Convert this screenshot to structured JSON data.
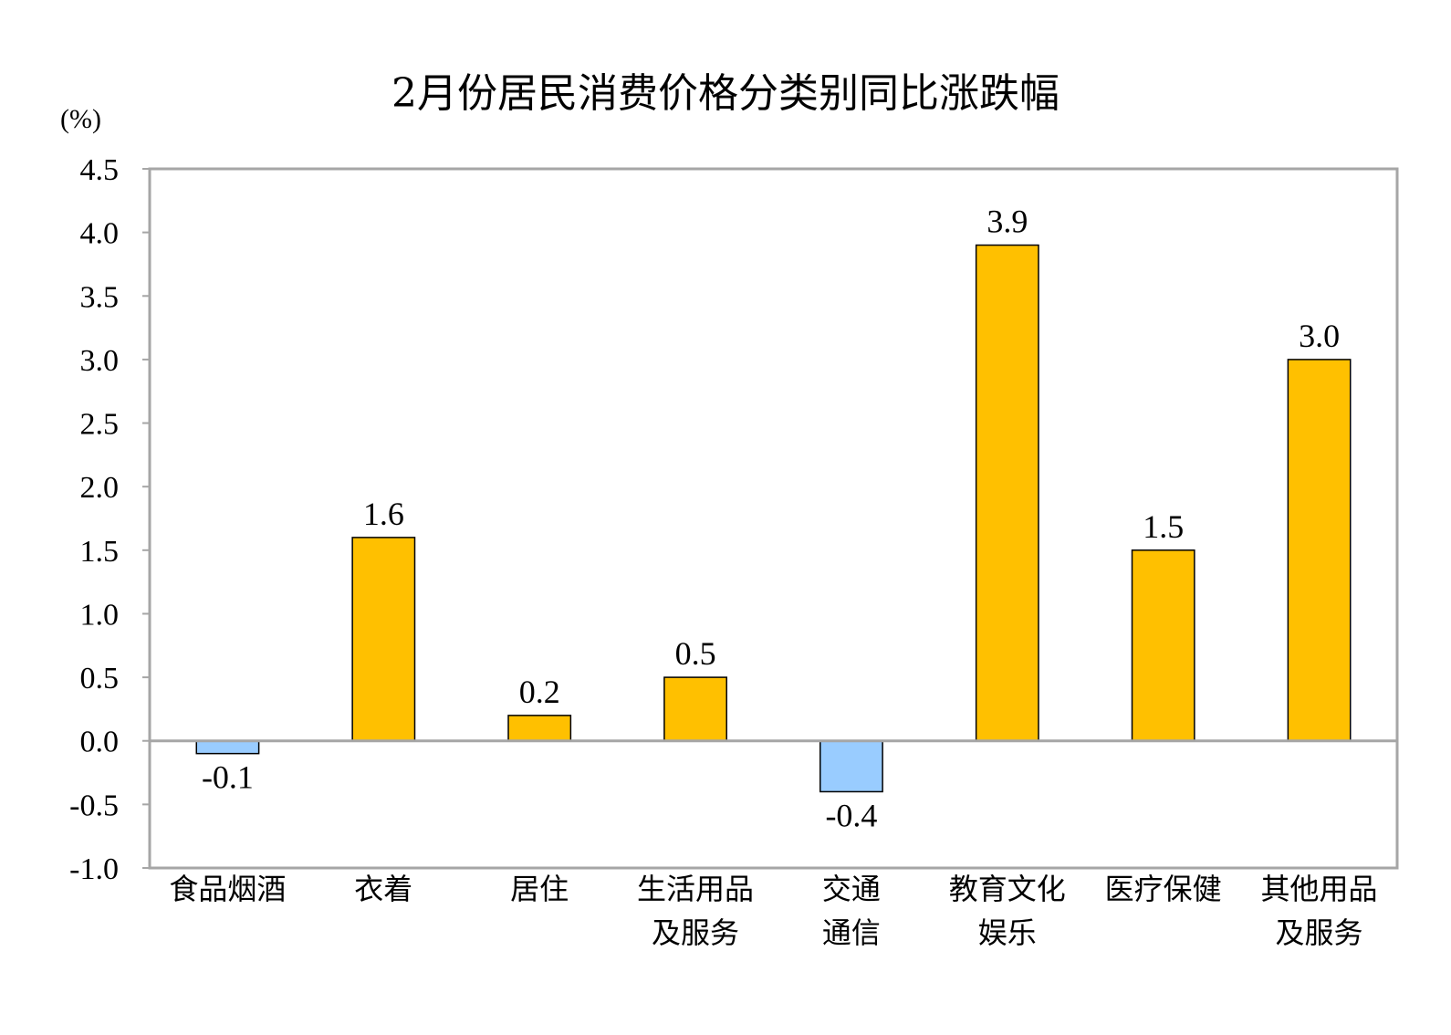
{
  "chart_data": {
    "type": "bar",
    "title": "2月份居民消费价格分类别同比涨跌幅",
    "unit_label": "(%)",
    "categories": [
      [
        "食品烟酒"
      ],
      [
        "衣着"
      ],
      [
        "居住"
      ],
      [
        "生活用品",
        "及服务"
      ],
      [
        "交通",
        "通信"
      ],
      [
        "教育文化",
        "娱乐"
      ],
      [
        "医疗保健"
      ],
      [
        "其他用品",
        "及服务"
      ]
    ],
    "values": [
      -0.1,
      1.6,
      0.2,
      0.5,
      -0.4,
      3.9,
      1.5,
      3.0
    ],
    "value_labels": [
      "-0.1",
      "1.6",
      "0.2",
      "0.5",
      "-0.4",
      "3.9",
      "1.5",
      "3.0"
    ],
    "ylim": [
      -1.0,
      4.5
    ],
    "yticks": [
      "4.5",
      "4.0",
      "3.5",
      "3.0",
      "2.5",
      "2.0",
      "1.5",
      "1.0",
      "0.5",
      "0.0",
      "-0.5",
      "-1.0"
    ],
    "grid": false,
    "colors": {
      "positive": "#FFC000",
      "negative": "#99CCFF",
      "border": "#000000",
      "frame": "#A6A6A6"
    }
  }
}
